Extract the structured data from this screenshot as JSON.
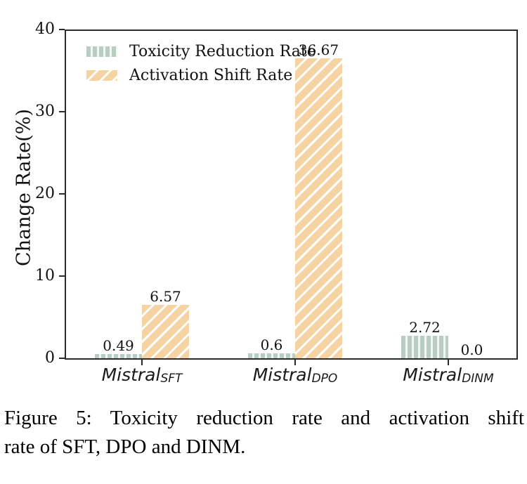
{
  "figure": {
    "caption_line1": "Figure 5: Toxicity reduction rate and activation shift",
    "caption_line2": "rate of SFT, DPO and DINM."
  },
  "chart_data": {
    "type": "bar",
    "title": "",
    "xlabel": "",
    "ylabel": "Change Rate(%)",
    "ylim": [
      0,
      40
    ],
    "yticks": [
      0,
      10,
      20,
      30,
      40
    ],
    "grid": false,
    "legend_position": "upper left",
    "categories": [
      "Mistral_SFT",
      "Mistral_DPO",
      "Mistral_DINM"
    ],
    "category_labels": [
      {
        "base": "Mistral",
        "sub": "SFT"
      },
      {
        "base": "Mistral",
        "sub": "DPO"
      },
      {
        "base": "Mistral",
        "sub": "DINM"
      }
    ],
    "series": [
      {
        "name": "Toxicity Reduction Rate",
        "values": [
          0.49,
          0.6,
          2.72
        ],
        "labels": [
          "0.49",
          "0.6",
          "2.72"
        ],
        "color": "#b9cdc2",
        "hatch": "vertical-stripes"
      },
      {
        "name": "Activation Shift Rate",
        "values": [
          6.57,
          36.67,
          0.0
        ],
        "labels": [
          "6.57",
          "36.67",
          "0.0"
        ],
        "color": "#f6d3a3",
        "hatch": "diagonal-stripes"
      }
    ]
  },
  "colors": {
    "axis": "#2b2b2b",
    "text": "#111111",
    "toxicity_green": "#b9cdc2",
    "activation_orange": "#f6d3a3",
    "hatch_gap": "#ffffff"
  }
}
